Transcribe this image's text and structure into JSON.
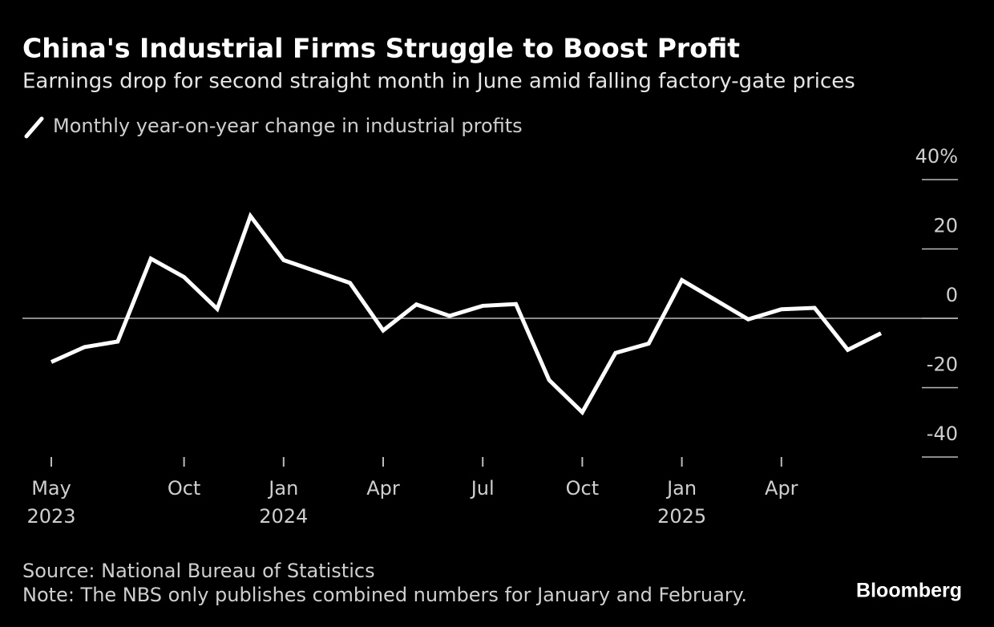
{
  "chart_data": {
    "type": "line",
    "title": "China's Industrial Firms Struggle to Boost Profit",
    "subtitle": "Earnings drop for second straight month in June amid falling factory-gate prices",
    "x": [
      "2023-05",
      "2023-06",
      "2023-07",
      "2023-08",
      "2023-09",
      "2023-10",
      "2023-11",
      "2023-12",
      "2024-02",
      "2024-03",
      "2024-04",
      "2024-05",
      "2024-06",
      "2024-07",
      "2024-08",
      "2024-09",
      "2024-10",
      "2024-11",
      "2024-12",
      "2025-02",
      "2025-03",
      "2025-04",
      "2025-05",
      "2025-06"
    ],
    "series": [
      {
        "name": "Monthly year-on-year change in industrial profits",
        "color": "#ffffff",
        "values": [
          -12.6,
          -8.3,
          -6.7,
          17.2,
          11.9,
          2.7,
          29.5,
          16.8,
          10.2,
          -3.5,
          4.0,
          0.7,
          3.6,
          4.1,
          -17.8,
          -27.1,
          -10.0,
          -7.3,
          11.0,
          -0.3,
          2.6,
          3.0,
          -9.1,
          -4.3
        ]
      }
    ],
    "ylim": [
      -40,
      40
    ],
    "yticks": [
      {
        "value": 40,
        "label": "40%"
      },
      20,
      0,
      -20,
      -40
    ],
    "xticks": [
      {
        "value": "2023-05",
        "label": "May"
      },
      {
        "value": "2023-10",
        "label": "Oct"
      },
      {
        "value": "2024-01",
        "label": "Jan"
      },
      {
        "value": "2024-04",
        "label": "Apr"
      },
      {
        "value": "2024-07",
        "label": "Jul"
      },
      {
        "value": "2024-10",
        "label": "Oct"
      },
      {
        "value": "2025-01",
        "label": "Jan"
      },
      {
        "value": "2025-04",
        "label": "Apr"
      }
    ],
    "xtick_years": [
      {
        "value": "2023-05",
        "label": "2023"
      },
      {
        "value": "2024-01",
        "label": "2024"
      },
      {
        "value": "2025-01",
        "label": "2025"
      }
    ],
    "zero_line": true,
    "source": "Source: National Bureau of Statistics",
    "note": "Note: The NBS only publishes combined numbers for January and February.",
    "brand": "Bloomberg"
  }
}
